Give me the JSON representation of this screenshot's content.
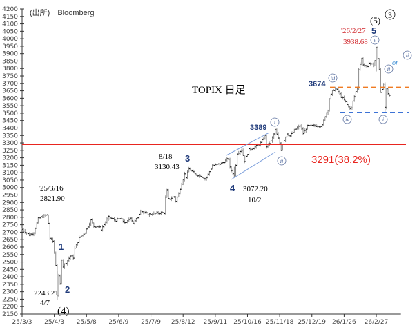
{
  "chart_data": {
    "type": "ohlc",
    "title": "TOPIX 日足",
    "source": "(出所)　Bloomberg",
    "ylim": [
      2150,
      4200
    ],
    "ytick_step": 50,
    "xticks": [
      {
        "day": 0,
        "label": "25/3/3"
      },
      {
        "day": 22,
        "label": "25/4/3"
      },
      {
        "day": 44,
        "label": "25/5/8"
      },
      {
        "day": 66,
        "label": "25/6/9"
      },
      {
        "day": 88,
        "label": "25/7/9"
      },
      {
        "day": 110,
        "label": "25/8/12"
      },
      {
        "day": 132,
        "label": "25/9/11"
      },
      {
        "day": 154,
        "label": "25/10/16"
      },
      {
        "day": 176,
        "label": "25/11/18"
      },
      {
        "day": 198,
        "label": "25/12/19"
      },
      {
        "day": 220,
        "label": "26/1/26"
      },
      {
        "day": 242,
        "label": "26/2/27"
      }
    ],
    "xmax": 256,
    "series_closes_by_day": [
      [
        0,
        2720
      ],
      [
        5,
        2680
      ],
      [
        8,
        2700
      ],
      [
        11,
        2790
      ],
      [
        15,
        2810
      ],
      [
        17,
        2815
      ],
      [
        18,
        2760
      ],
      [
        19,
        2660
      ],
      [
        21,
        2640
      ],
      [
        22,
        2560
      ],
      [
        23,
        2480
      ],
      [
        24,
        2280
      ],
      [
        25,
        2400
      ],
      [
        26,
        2350
      ],
      [
        27,
        2520
      ],
      [
        28,
        2470
      ],
      [
        31,
        2510
      ],
      [
        33,
        2540
      ],
      [
        35,
        2530
      ],
      [
        36,
        2590
      ],
      [
        39,
        2660
      ],
      [
        43,
        2700
      ],
      [
        45,
        2740
      ],
      [
        47,
        2780
      ],
      [
        49,
        2740
      ],
      [
        52,
        2740
      ],
      [
        54,
        2720
      ],
      [
        59,
        2800
      ],
      [
        64,
        2780
      ],
      [
        67,
        2790
      ],
      [
        71,
        2760
      ],
      [
        74,
        2800
      ],
      [
        76,
        2760
      ],
      [
        79,
        2800
      ],
      [
        81,
        2850
      ],
      [
        83,
        2830
      ],
      [
        87,
        2820
      ],
      [
        93,
        2830
      ],
      [
        97,
        2830
      ],
      [
        98,
        2930
      ],
      [
        99,
        2980
      ],
      [
        100,
        2920
      ],
      [
        104,
        2940
      ],
      [
        105,
        2910
      ],
      [
        107,
        2960
      ],
      [
        109,
        3030
      ],
      [
        111,
        3090
      ],
      [
        112,
        3070
      ],
      [
        114,
        3125
      ],
      [
        116,
        3110
      ],
      [
        118,
        3090
      ],
      [
        122,
        3080
      ],
      [
        125,
        3060
      ],
      [
        126,
        3068
      ],
      [
        130,
        3147
      ],
      [
        136,
        3161
      ],
      [
        141,
        3194
      ],
      [
        142,
        3133
      ],
      [
        145,
        3080
      ],
      [
        147,
        3231
      ],
      [
        150,
        3254
      ],
      [
        152,
        3180
      ],
      [
        155,
        3254
      ],
      [
        157,
        3263
      ],
      [
        160,
        3277
      ],
      [
        163,
        3300
      ],
      [
        166,
        3347
      ],
      [
        167,
        3277
      ],
      [
        170,
        3309
      ],
      [
        173,
        3385
      ],
      [
        176,
        3300
      ],
      [
        177,
        3254
      ],
      [
        178,
        3296
      ],
      [
        181,
        3365
      ],
      [
        183,
        3347
      ],
      [
        187,
        3393
      ],
      [
        190,
        3416
      ],
      [
        192,
        3365
      ],
      [
        195,
        3412
      ],
      [
        200,
        3416
      ],
      [
        205,
        3416
      ],
      [
        207,
        3481
      ],
      [
        209,
        3527
      ],
      [
        210,
        3597
      ],
      [
        212,
        3648
      ],
      [
        214,
        3667
      ],
      [
        216,
        3643
      ],
      [
        218,
        3611
      ],
      [
        221,
        3574
      ],
      [
        223,
        3541
      ],
      [
        225,
        3532
      ],
      [
        226,
        3579
      ],
      [
        228,
        3643
      ],
      [
        229,
        3671
      ],
      [
        230,
        3796
      ],
      [
        232,
        3866
      ],
      [
        233,
        3829
      ],
      [
        236,
        3806
      ],
      [
        237,
        3843
      ],
      [
        240,
        3820
      ],
      [
        241,
        3852
      ],
      [
        242,
        3936
      ],
      [
        244,
        3796
      ],
      [
        245,
        3643
      ],
      [
        247,
        3690
      ],
      [
        248,
        3540
      ],
      [
        249,
        3657
      ],
      [
        250,
        3625
      ],
      [
        252,
        3611
      ]
    ],
    "hlines": [
      {
        "value": 3291,
        "color": "#e8251f",
        "style": "solid",
        "label": "3291(38.2%)"
      },
      {
        "value": 3674,
        "color": "#f07b22",
        "style": "dashed",
        "label": "3674"
      },
      {
        "value": 3505,
        "color": "#3d73d6",
        "style": "dashed"
      }
    ],
    "annotations": {
      "start_date": "'25/3/16",
      "start_value": "2821.90",
      "low_value": "2243.21",
      "low_date": "4/7",
      "wave_4_big": "(4)",
      "wave_1": "1",
      "wave_2": "2",
      "wave_3": "3",
      "w3_date": "8/18",
      "w3_value": "3130.43",
      "wave_4": "4",
      "w4_value": "3072.20",
      "w4_date": "10/2",
      "peak_i": "3389",
      "sub_i": "i",
      "sub_ii": "ii",
      "sub_iii": "iii",
      "sub_iv": "iv",
      "sub_v": "v",
      "peak_date": "'26/2/27",
      "peak_value": "3938.68",
      "wave_5": "5",
      "wave_5_paren": "(5)",
      "wave_3_circled": "3",
      "or": "or"
    },
    "colors": {
      "bar": "#8a8a8a",
      "close": "#111111",
      "wave": "#1f3a7a",
      "red": "#e8251f"
    }
  }
}
